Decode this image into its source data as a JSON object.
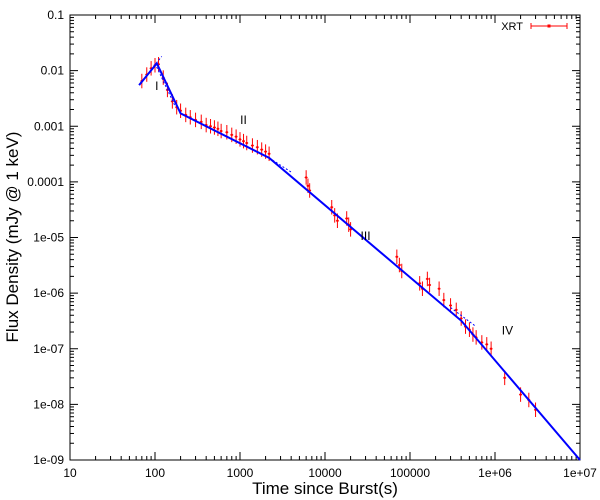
{
  "chart_data": {
    "type": "scatter",
    "x_scale": "log",
    "y_scale": "log",
    "xlabel": "Time since Burst(s)",
    "ylabel": "Flux Density (mJy @ 1 keV)",
    "xlim": [
      10,
      10000000
    ],
    "ylim": [
      1e-09,
      0.1
    ],
    "x_ticks": [
      10,
      100,
      1000,
      10000,
      100000,
      1000000,
      10000000
    ],
    "x_tick_labels": [
      "10",
      "100",
      "1000",
      "10000",
      "100000",
      "1e+06",
      "1e+07"
    ],
    "y_ticks": [
      0.1,
      0.01,
      0.001,
      0.0001,
      1e-05,
      1e-06,
      1e-07,
      1e-08,
      1e-09
    ],
    "y_tick_labels": [
      "0.1",
      "0.01",
      "0.001",
      "0.0001",
      "1e-05",
      "1e-06",
      "1e-07",
      "1e-08",
      "1e-09"
    ],
    "grid": false,
    "legend_position": "top-right",
    "colors": {
      "data": "#ff0000",
      "fit": "#0000ff"
    },
    "series": [
      {
        "name": "XRT",
        "marker": "points-with-error-bars",
        "points": [
          [
            70,
            0.0065
          ],
          [
            80,
            0.0085
          ],
          [
            90,
            0.011
          ],
          [
            100,
            0.0125
          ],
          [
            110,
            0.013
          ],
          [
            125,
            0.0075
          ],
          [
            140,
            0.0045
          ],
          [
            160,
            0.0028
          ],
          [
            180,
            0.0022
          ],
          [
            200,
            0.0019
          ],
          [
            230,
            0.0016
          ],
          [
            260,
            0.00145
          ],
          [
            300,
            0.0013
          ],
          [
            350,
            0.0012
          ],
          [
            400,
            0.00105
          ],
          [
            450,
            0.001
          ],
          [
            500,
            0.00095
          ],
          [
            550,
            0.0009
          ],
          [
            600,
            0.00082
          ],
          [
            700,
            0.00078
          ],
          [
            800,
            0.0007
          ],
          [
            900,
            0.00065
          ],
          [
            1000,
            0.00058
          ],
          [
            1100,
            0.00054
          ],
          [
            1200,
            0.0005
          ],
          [
            1400,
            0.00045
          ],
          [
            1600,
            0.00042
          ],
          [
            1800,
            0.00038
          ],
          [
            2000,
            0.00035
          ],
          [
            2200,
            0.00032
          ],
          [
            6000,
            0.00012
          ],
          [
            6300,
            8.5e-05
          ],
          [
            6600,
            7e-05
          ],
          [
            12000,
            3.5e-05
          ],
          [
            13000,
            2.5e-05
          ],
          [
            14000,
            2e-05
          ],
          [
            18000,
            2.2e-05
          ],
          [
            19000,
            1.7e-05
          ],
          [
            20000,
            1.4e-05
          ],
          [
            70000,
            4.5e-06
          ],
          [
            75000,
            3.2e-06
          ],
          [
            80000,
            2.5e-06
          ],
          [
            130000,
            1.5e-06
          ],
          [
            140000,
            1.2e-06
          ],
          [
            160000,
            1.8e-06
          ],
          [
            170000,
            1.4e-06
          ],
          [
            220000,
            1.2e-06
          ],
          [
            250000,
            7.5e-07
          ],
          [
            300000,
            6e-07
          ],
          [
            350000,
            5e-07
          ],
          [
            400000,
            3.5e-07
          ],
          [
            450000,
            2.5e-07
          ],
          [
            500000,
            2.2e-07
          ],
          [
            550000,
            1.8e-07
          ],
          [
            600000,
            1.6e-07
          ],
          [
            700000,
            1.3e-07
          ],
          [
            800000,
            1.2e-07
          ],
          [
            900000,
            1e-07
          ],
          [
            1300000,
            3e-08
          ],
          [
            2000000,
            1.5e-08
          ],
          [
            2500000,
            1.2e-08
          ],
          [
            3000000,
            8e-09
          ]
        ]
      },
      {
        "name": "",
        "style": "solid",
        "points": [
          [
            65,
            0.0055
          ],
          [
            105,
            0.0135
          ],
          [
            200,
            0.0017
          ],
          [
            2200,
            0.00027
          ],
          [
            400000,
            3.2e-07
          ],
          [
            10000000,
            1e-09
          ]
        ]
      },
      {
        "name": "",
        "style": "dotted",
        "points": [
          [
            90,
            0.0105
          ],
          [
            120,
            0.018
          ]
        ]
      },
      {
        "name": "",
        "style": "dotted",
        "points": [
          [
            100,
            0.0135
          ],
          [
            170,
            0.0024
          ]
        ]
      },
      {
        "name": "",
        "style": "dotted",
        "points": [
          [
            2200,
            0.00027
          ],
          [
            4000,
            0.00015
          ]
        ]
      },
      {
        "name": "",
        "style": "dotted",
        "points": [
          [
            300000,
            5.5e-07
          ],
          [
            600000,
            2.5e-07
          ]
        ]
      }
    ],
    "annotations": [
      {
        "text": "I",
        "x": 105,
        "y": 0.0045
      },
      {
        "text": "II",
        "x": 1100,
        "y": 0.0011
      },
      {
        "text": "III",
        "x": 30000,
        "y": 9e-06
      },
      {
        "text": "IV",
        "x": 1400000,
        "y": 1.8e-07
      }
    ]
  }
}
